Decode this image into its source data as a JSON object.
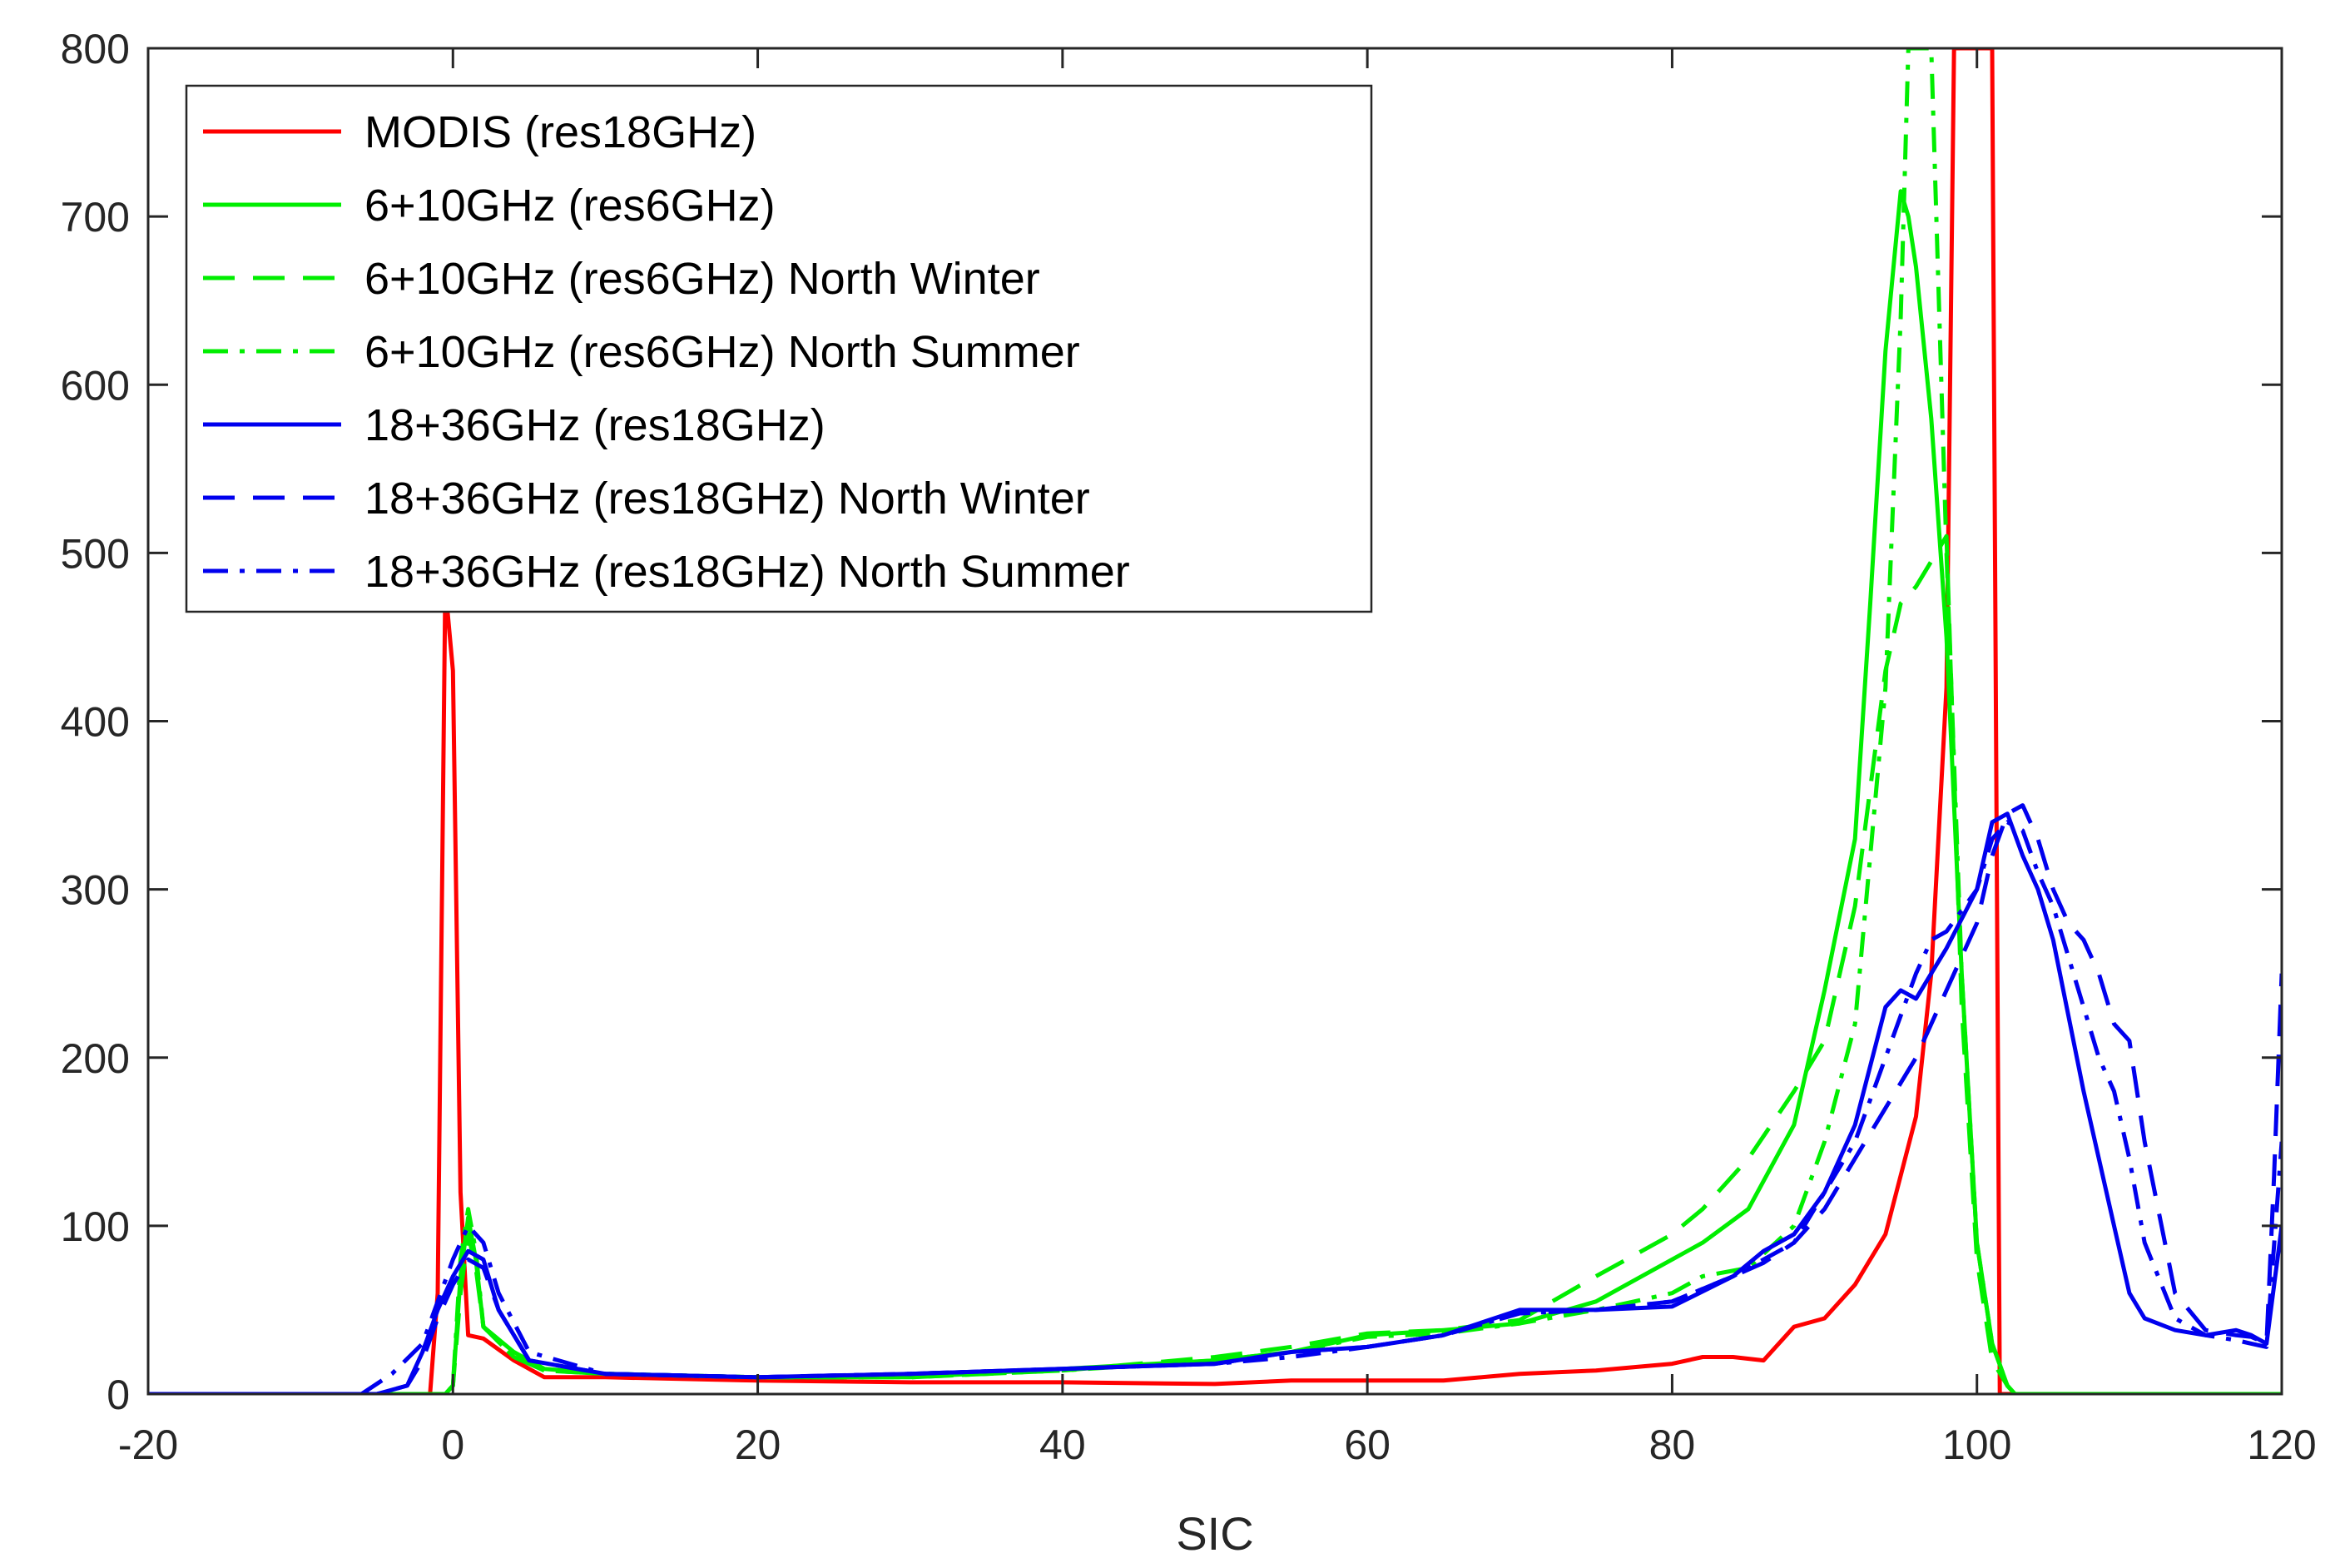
{
  "chart_data": {
    "type": "line",
    "title": "",
    "xlabel": "SIC",
    "ylabel": "",
    "xlim": [
      -20,
      120
    ],
    "ylim": [
      0,
      800
    ],
    "xticks": [
      -20,
      0,
      20,
      40,
      60,
      80,
      100,
      120
    ],
    "yticks": [
      0,
      100,
      200,
      300,
      400,
      500,
      600,
      700,
      800
    ],
    "legend_position": "top-left",
    "grid": false,
    "series": [
      {
        "name": "MODIS (res18GHz)",
        "color": "#ff0000",
        "dash": "solid",
        "x": [
          -20,
          -1.5,
          -1,
          -0.5,
          0,
          0.5,
          1,
          2,
          4,
          6,
          10,
          20,
          30,
          40,
          50,
          55,
          60,
          65,
          70,
          75,
          80,
          82,
          84,
          86,
          88,
          90,
          92,
          94,
          96,
          97,
          98,
          98.5,
          99,
          100,
          100.5,
          101,
          101.5,
          120
        ],
        "y": [
          0,
          0,
          60,
          480,
          430,
          120,
          35,
          33,
          20,
          10,
          10,
          8,
          7,
          7,
          6,
          8,
          8,
          8,
          12,
          14,
          18,
          22,
          22,
          20,
          40,
          45,
          65,
          95,
          165,
          250,
          420,
          800,
          800,
          800,
          800,
          800,
          0,
          0
        ]
      },
      {
        "name": "6+10GHz (res6GHz)",
        "color": "#00ee00",
        "dash": "solid",
        "x": [
          -20,
          -0.5,
          0,
          0.5,
          1,
          1.5,
          2,
          4,
          6,
          10,
          20,
          30,
          40,
          50,
          55,
          60,
          65,
          70,
          75,
          80,
          82,
          85,
          88,
          90,
          92,
          93,
          94,
          95,
          95.5,
          96,
          97,
          98,
          99,
          100,
          101,
          102,
          102.5,
          120
        ],
        "y": [
          0,
          0,
          5,
          70,
          105,
          80,
          40,
          25,
          15,
          12,
          10,
          10,
          15,
          20,
          25,
          35,
          38,
          42,
          55,
          80,
          90,
          110,
          160,
          240,
          330,
          470,
          620,
          715,
          700,
          670,
          580,
          450,
          250,
          90,
          30,
          5,
          0,
          0
        ]
      },
      {
        "name": "6+10GHz (res6GHz) North Winter",
        "color": "#00ee00",
        "dash": "dashed",
        "x": [
          -20,
          -0.5,
          0,
          0.5,
          1,
          1.5,
          2,
          4,
          6,
          10,
          20,
          30,
          40,
          50,
          55,
          60,
          65,
          70,
          75,
          80,
          82,
          85,
          88,
          90,
          92,
          94,
          95,
          96,
          97,
          98,
          99,
          100,
          101,
          102,
          102.5,
          120
        ],
        "y": [
          0,
          0,
          5,
          60,
          95,
          75,
          40,
          22,
          14,
          12,
          10,
          10,
          14,
          22,
          28,
          36,
          38,
          44,
          70,
          95,
          110,
          140,
          180,
          210,
          290,
          430,
          470,
          480,
          495,
          510,
          230,
          80,
          20,
          5,
          0,
          0
        ]
      },
      {
        "name": "6+10GHz (res6GHz) North Summer",
        "color": "#00ee00",
        "dash": "dashdot",
        "x": [
          -20,
          -0.5,
          0,
          0.5,
          1,
          1.5,
          2,
          4,
          6,
          10,
          20,
          30,
          40,
          50,
          55,
          60,
          65,
          70,
          75,
          80,
          82,
          85,
          88,
          90,
          92,
          94,
          95,
          95.5,
          96,
          97,
          98,
          99,
          100,
          101,
          102,
          102.5,
          120
        ],
        "y": [
          0,
          0,
          5,
          80,
          110,
          85,
          40,
          22,
          14,
          12,
          10,
          10,
          14,
          20,
          25,
          34,
          36,
          42,
          50,
          60,
          70,
          75,
          100,
          150,
          220,
          420,
          640,
          800,
          800,
          800,
          500,
          250,
          90,
          30,
          5,
          0,
          0
        ]
      },
      {
        "name": "18+36GHz (res18GHz)",
        "color": "#0000ee",
        "dash": "solid",
        "x": [
          -20,
          -5,
          -3,
          -2,
          -1,
          0,
          1,
          2,
          3,
          5,
          10,
          20,
          30,
          40,
          50,
          55,
          60,
          65,
          70,
          75,
          80,
          84,
          86,
          88,
          90,
          92,
          94,
          95,
          96,
          97,
          98,
          100,
          101,
          102,
          103,
          104,
          105,
          107,
          109,
          110,
          111,
          113,
          115,
          117,
          118,
          119,
          120
        ],
        "y": [
          0,
          0,
          5,
          25,
          50,
          70,
          85,
          80,
          50,
          20,
          12,
          10,
          12,
          15,
          18,
          25,
          28,
          35,
          50,
          50,
          52,
          70,
          85,
          95,
          120,
          160,
          230,
          240,
          235,
          250,
          265,
          300,
          340,
          345,
          320,
          300,
          270,
          180,
          100,
          60,
          45,
          38,
          35,
          38,
          35,
          30,
          100
        ]
      },
      {
        "name": "18+36GHz (res18GHz) North Winter",
        "color": "#0000ee",
        "dash": "dashed",
        "x": [
          -20,
          -5,
          -3,
          -2,
          -1,
          0,
          1,
          2,
          3,
          5,
          10,
          20,
          30,
          40,
          50,
          55,
          60,
          65,
          70,
          75,
          80,
          84,
          86,
          88,
          90,
          92,
          94,
          96,
          98,
          100,
          101,
          102,
          103,
          104,
          105,
          106,
          107,
          108,
          109,
          110,
          111,
          113,
          115,
          117,
          118,
          119,
          119.5,
          120
        ],
        "y": [
          0,
          0,
          5,
          20,
          45,
          65,
          80,
          75,
          50,
          20,
          12,
          10,
          12,
          15,
          18,
          25,
          28,
          35,
          48,
          50,
          55,
          70,
          78,
          90,
          110,
          140,
          170,
          200,
          240,
          280,
          320,
          345,
          350,
          330,
          300,
          280,
          270,
          250,
          220,
          210,
          150,
          60,
          38,
          35,
          34,
          30,
          130,
          250
        ]
      },
      {
        "name": "18+36GHz (res18GHz) North Summer",
        "color": "#0000ee",
        "dash": "dashdot",
        "x": [
          -20,
          -6,
          -4,
          -2,
          -1,
          0,
          1,
          2,
          3,
          5,
          10,
          20,
          30,
          40,
          50,
          55,
          60,
          65,
          70,
          75,
          80,
          84,
          86,
          88,
          90,
          92,
          94,
          96,
          97,
          98,
          100,
          101,
          102,
          103,
          104,
          105,
          106,
          107,
          108,
          109,
          110,
          111,
          113,
          115,
          117,
          118,
          119,
          120
        ],
        "y": [
          0,
          0,
          12,
          30,
          55,
          80,
          100,
          90,
          60,
          25,
          12,
          10,
          12,
          15,
          18,
          22,
          28,
          35,
          48,
          50,
          55,
          70,
          80,
          90,
          120,
          150,
          200,
          250,
          270,
          275,
          300,
          330,
          340,
          335,
          310,
          290,
          260,
          230,
          200,
          180,
          140,
          90,
          45,
          35,
          32,
          30,
          28,
          150
        ]
      }
    ]
  }
}
